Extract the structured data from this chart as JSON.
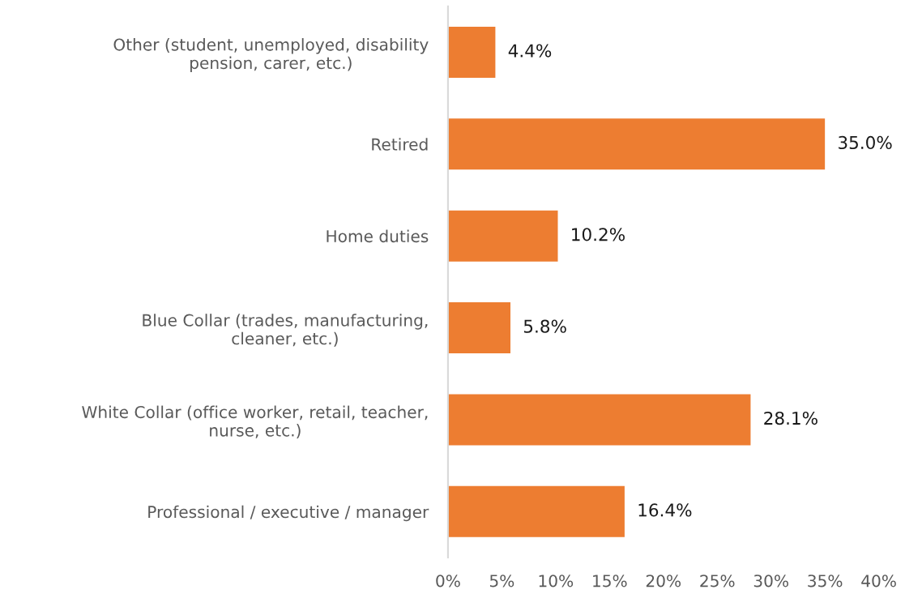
{
  "chart_data": {
    "type": "bar",
    "orientation": "horizontal",
    "categories": [
      "Other (student, unemployed, disability pension, carer, etc.)",
      "Retired",
      "Home duties",
      "Blue Collar (trades, manufacturing, cleaner, etc.)",
      "White Collar (office worker, retail, teacher, nurse, etc.)",
      "Professional / executive / manager"
    ],
    "values": [
      4.4,
      35.0,
      10.2,
      5.8,
      28.1,
      16.4
    ],
    "value_labels": [
      "4.4%",
      "35.0%",
      "10.2%",
      "5.8%",
      "28.1%",
      "16.4%"
    ],
    "color": "#ed7d31",
    "xlim": [
      0,
      40
    ],
    "xticks": [
      {
        "value": 0,
        "label": "0%"
      },
      {
        "value": 5,
        "label": "5%"
      },
      {
        "value": 10,
        "label": "10%"
      },
      {
        "value": 15,
        "label": "15%"
      },
      {
        "value": 20,
        "label": "20%"
      },
      {
        "value": 25,
        "label": "25%"
      },
      {
        "value": 30,
        "label": "30%"
      },
      {
        "value": 35,
        "label": "35%"
      },
      {
        "value": 40,
        "label": "40%"
      }
    ]
  }
}
